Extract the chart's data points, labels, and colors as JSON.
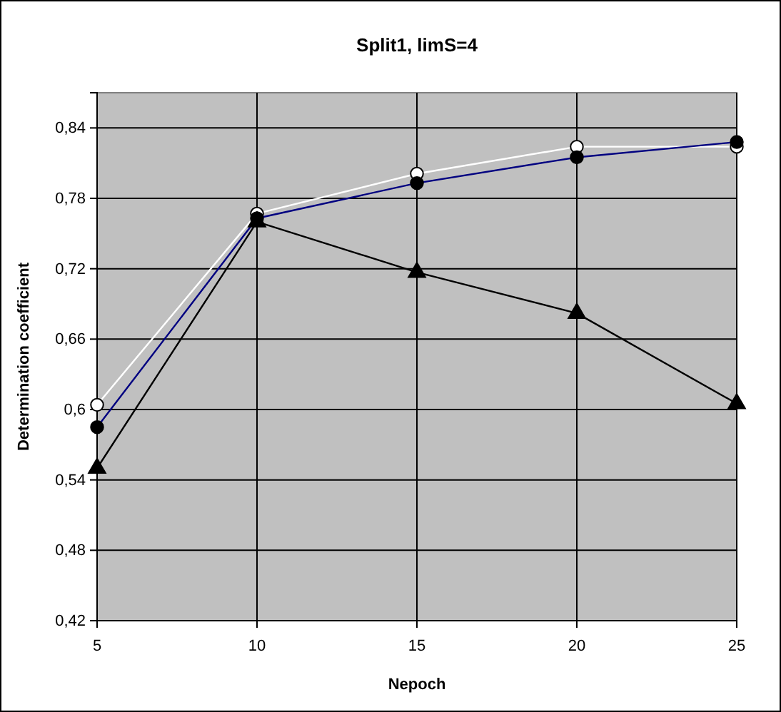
{
  "chart_data": {
    "type": "line",
    "title": "Split1, limS=4",
    "xlabel": "Nepoch",
    "ylabel": "Determination coefficient",
    "x": [
      5,
      10,
      15,
      20,
      25
    ],
    "xlim": [
      5,
      25
    ],
    "xticks": [
      5,
      10,
      15,
      20,
      25
    ],
    "ylim": [
      0.42,
      0.87
    ],
    "yticks": [
      {
        "value": 0.42,
        "label": "0,42"
      },
      {
        "value": 0.48,
        "label": "0,48"
      },
      {
        "value": 0.54,
        "label": "0,54"
      },
      {
        "value": 0.6,
        "label": "0,6"
      },
      {
        "value": 0.66,
        "label": "0,66"
      },
      {
        "value": 0.72,
        "label": "0,72"
      },
      {
        "value": 0.78,
        "label": "0,78"
      },
      {
        "value": 0.84,
        "label": "0,84"
      }
    ],
    "grid": true,
    "series": [
      {
        "color": "#ffffff",
        "marker": "circle",
        "values": [
          0.604,
          0.767,
          0.801,
          0.824,
          0.824
        ]
      },
      {
        "color": "#000080",
        "marker": "circle",
        "values": [
          0.585,
          0.763,
          0.793,
          0.815,
          0.828
        ]
      },
      {
        "color": "#000000",
        "marker": "triangle",
        "values": [
          0.55,
          0.76,
          0.717,
          0.682,
          0.605
        ]
      }
    ]
  }
}
